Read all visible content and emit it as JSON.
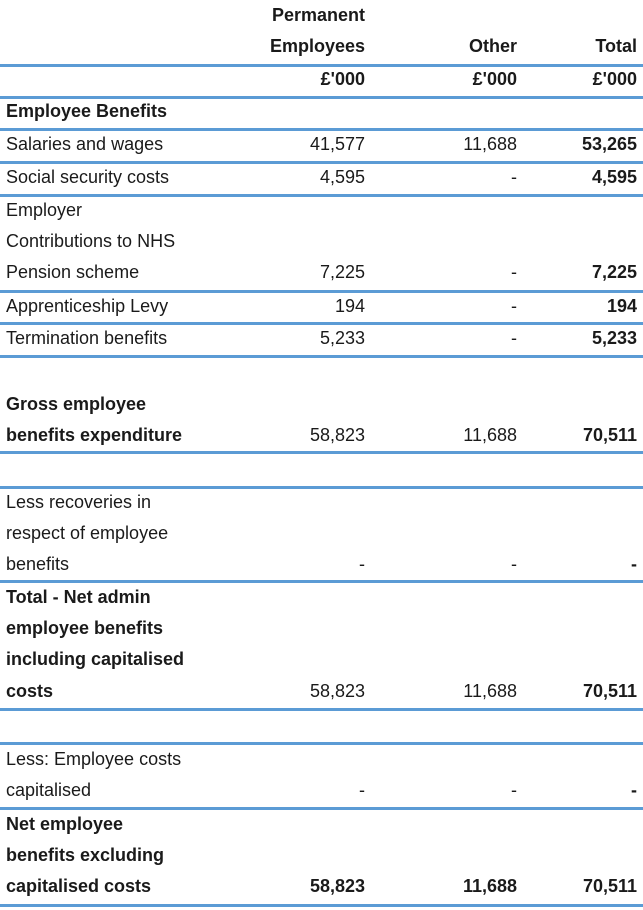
{
  "header": {
    "col1_line1": "Permanent",
    "col1_line2": "Employees",
    "col2": "Other",
    "col3": "Total",
    "unit": "£'000"
  },
  "section_title": "Employee Benefits",
  "rows": {
    "salaries": {
      "label": "Salaries and wages",
      "perm": "41,577",
      "other": "11,688",
      "total": "53,265"
    },
    "social": {
      "label": "Social security costs",
      "perm": "4,595",
      "other": "-",
      "total": "4,595"
    },
    "pension": {
      "label_1": "Employer",
      "label_2": "Contributions to NHS",
      "label_3": "Pension scheme",
      "perm": "7,225",
      "other": "-",
      "total": "7,225"
    },
    "apprentice": {
      "label": "Apprenticeship Levy",
      "perm": "194",
      "other": "-",
      "total": "194"
    },
    "termination": {
      "label": "Termination benefits",
      "perm": "5,233",
      "other": "-",
      "total": "5,233"
    },
    "gross": {
      "label_1": "Gross employee",
      "label_2": "benefits expenditure",
      "perm": "58,823",
      "other": "11,688",
      "total": "70,511"
    },
    "recoveries": {
      "label_1": "Less recoveries in",
      "label_2": "respect of employee",
      "label_3": "benefits",
      "perm": "-",
      "other": "-",
      "total": "-"
    },
    "net_admin": {
      "label_1": "Total - Net admin",
      "label_2": "employee benefits",
      "label_3": "including capitalised",
      "label_4": "costs",
      "perm": "58,823",
      "other": "11,688",
      "total": "70,511"
    },
    "capitalised": {
      "label_1": "Less: Employee costs",
      "label_2": "capitalised",
      "perm": "-",
      "other": "-",
      "total": "-"
    },
    "net_excl": {
      "label_1": "Net employee",
      "label_2": "benefits excluding",
      "label_3": "capitalised costs",
      "perm": "58,823",
      "other": "11,688",
      "total": "70,511"
    }
  }
}
